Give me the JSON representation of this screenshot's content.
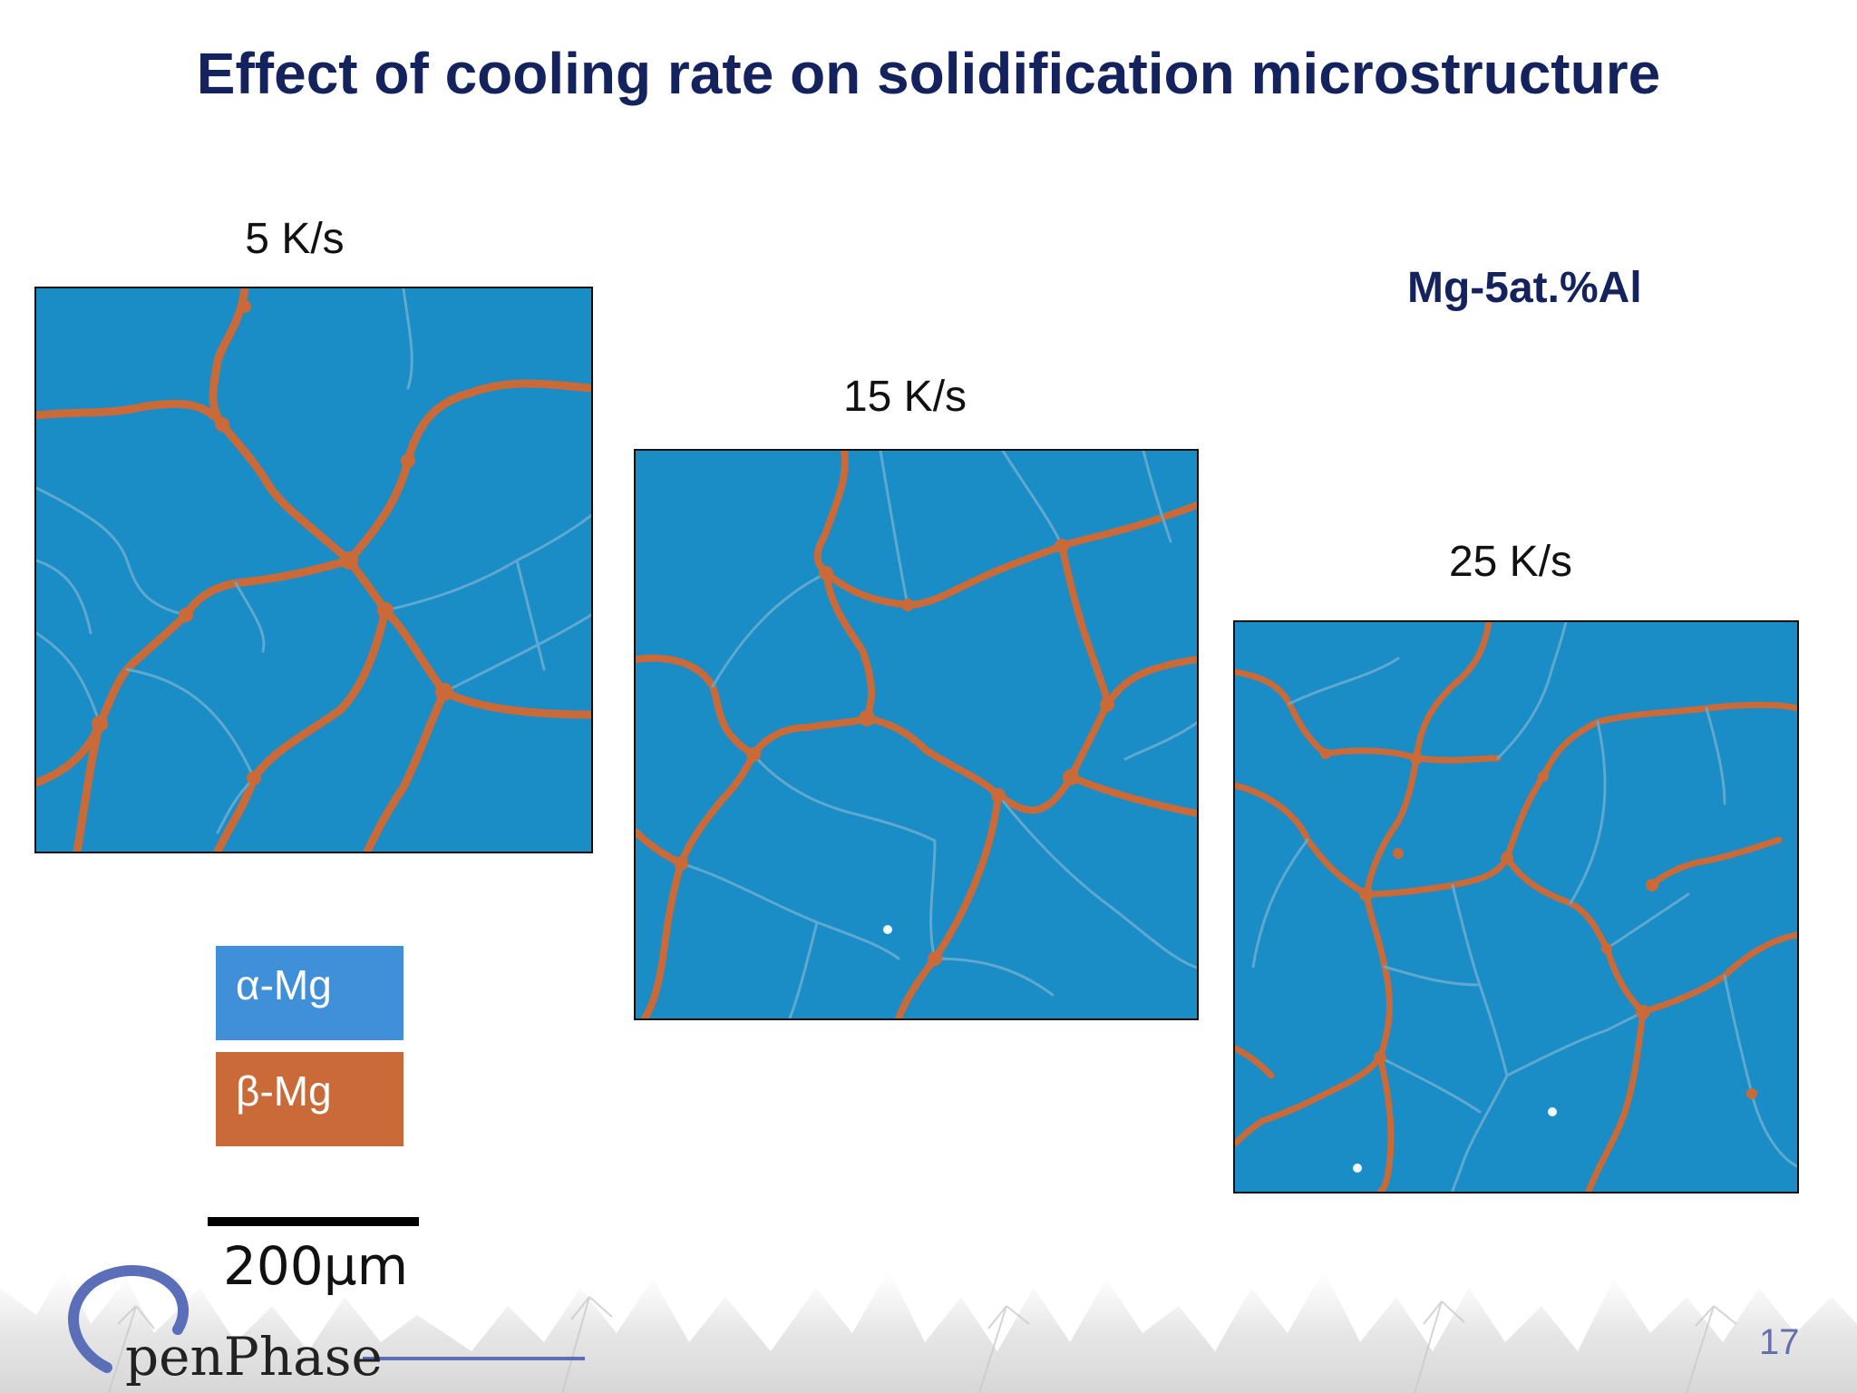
{
  "slide": {
    "title": "Effect of cooling rate on solidification microstructure",
    "alloy": "Mg-5at.%Al",
    "page_number": "17"
  },
  "panels": [
    {
      "label": "5 K/s"
    },
    {
      "label": "15 K/s"
    },
    {
      "label": "25 K/s"
    }
  ],
  "legend": [
    {
      "label": "α-Mg",
      "color": "#3f8fd9"
    },
    {
      "label": "β-Mg",
      "color": "#c96a38"
    }
  ],
  "scale": {
    "label": "200μm"
  },
  "logo": {
    "text": "penPhase",
    "icon": "openphase-logo-icon"
  },
  "colors": {
    "alpha_matrix": "#1a8cc6",
    "beta_phase": "#c96a38",
    "grain_boundary": "#5fa8cf"
  }
}
